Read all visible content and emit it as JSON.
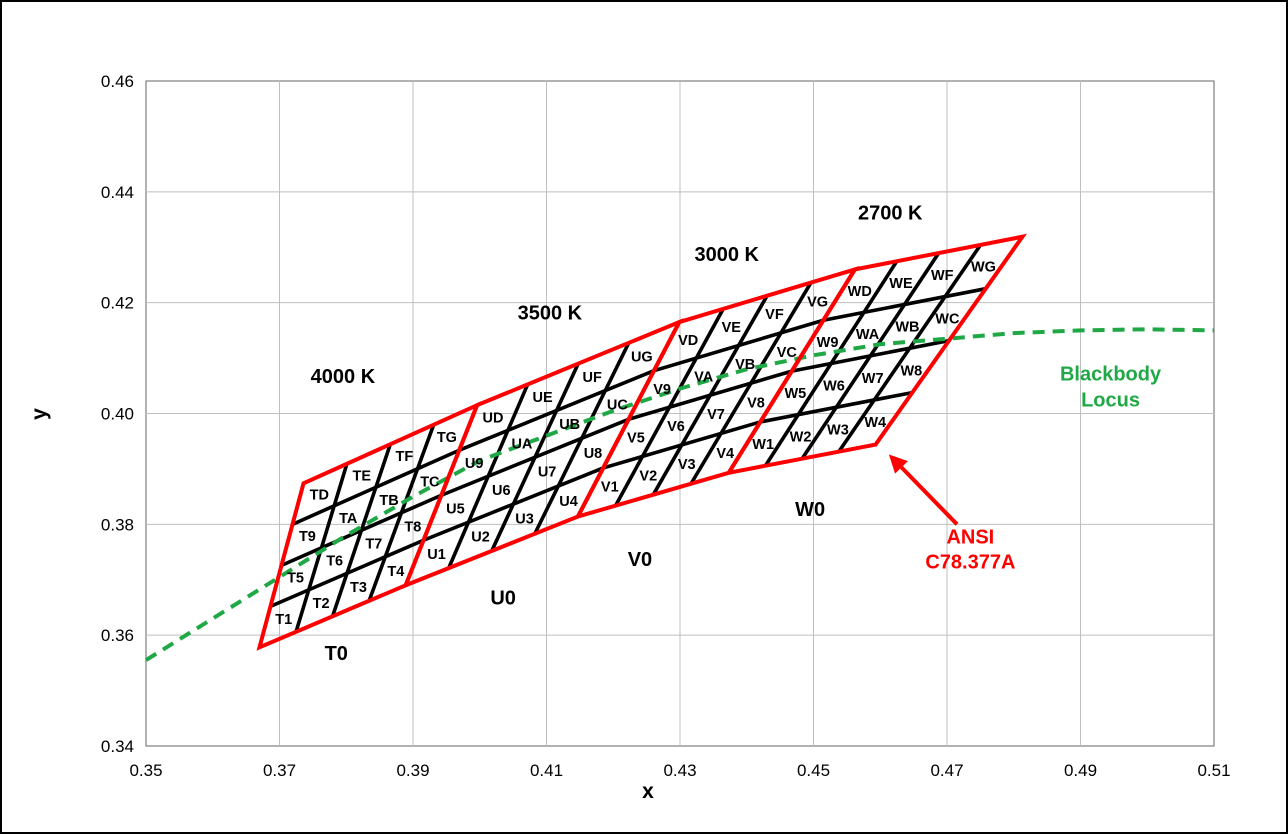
{
  "chart_data": {
    "type": "scatter",
    "title": "",
    "xlabel": "x",
    "ylabel": "y",
    "xlim": [
      0.35,
      0.51
    ],
    "ylim": [
      0.34,
      0.46
    ],
    "x_ticks": [
      0.35,
      0.37,
      0.39,
      0.41,
      0.43,
      0.45,
      0.47,
      0.49,
      0.51
    ],
    "y_ticks": [
      0.34,
      0.36,
      0.38,
      0.4,
      0.42,
      0.44,
      0.46
    ],
    "x_tick_labels": [
      "0.35",
      "0.37",
      "0.39",
      "0.41",
      "0.43",
      "0.45",
      "0.47",
      "0.49",
      "0.51"
    ],
    "y_tick_labels": [
      "0.34",
      "0.36",
      "0.38",
      "0.40",
      "0.42",
      "0.44",
      "0.46"
    ],
    "grid": true,
    "bin_groups": [
      {
        "name": "4000 K",
        "prefix": "T",
        "corners": {
          "bottom_left": [
            0.367,
            0.3578
          ],
          "top_left": [
            0.3736,
            0.3874
          ],
          "top_right": [
            0.3996,
            0.4015
          ],
          "bottom_right": [
            0.3889,
            0.369
          ]
        },
        "bins": [
          "T1",
          "T2",
          "T3",
          "T4",
          "T5",
          "T6",
          "T7",
          "T8",
          "T9",
          "TA",
          "TB",
          "TC",
          "TD",
          "TE",
          "TF",
          "TG"
        ],
        "zero_bin": "T0"
      },
      {
        "name": "3500 K",
        "prefix": "U",
        "corners": {
          "bottom_left": [
            0.3889,
            0.369
          ],
          "top_left": [
            0.3996,
            0.4015
          ],
          "top_right": [
            0.4299,
            0.4165
          ],
          "bottom_right": [
            0.4147,
            0.3814
          ]
        },
        "bins": [
          "U1",
          "U2",
          "U3",
          "U4",
          "U5",
          "U6",
          "U7",
          "U8",
          "U9",
          "UA",
          "UB",
          "UC",
          "UD",
          "UE",
          "UF",
          "UG"
        ],
        "zero_bin": "U0"
      },
      {
        "name": "3000 K",
        "prefix": "V",
        "corners": {
          "bottom_left": [
            0.4147,
            0.3814
          ],
          "top_left": [
            0.4299,
            0.4165
          ],
          "top_right": [
            0.4562,
            0.426
          ],
          "bottom_right": [
            0.4373,
            0.3893
          ]
        },
        "bins": [
          "V1",
          "V2",
          "V3",
          "V4",
          "V5",
          "V6",
          "V7",
          "V8",
          "V9",
          "VA",
          "VB",
          "VC",
          "VD",
          "VE",
          "VF",
          "VG"
        ],
        "zero_bin": "V0"
      },
      {
        "name": "2700 K",
        "prefix": "W",
        "corners": {
          "bottom_left": [
            0.4373,
            0.3893
          ],
          "top_left": [
            0.4562,
            0.426
          ],
          "top_right": [
            0.4813,
            0.4319
          ],
          "bottom_right": [
            0.4593,
            0.3944
          ]
        },
        "bins": [
          "W1",
          "W2",
          "W3",
          "W4",
          "W5",
          "W6",
          "W7",
          "W8",
          "W9",
          "WA",
          "WB",
          "WC",
          "WD",
          "WE",
          "WF",
          "WG"
        ],
        "zero_bin": "W0"
      }
    ],
    "blackbody_locus": {
      "name": "Blackbody Locus",
      "x": [
        0.35,
        0.36,
        0.37,
        0.38,
        0.39,
        0.4,
        0.41,
        0.42,
        0.43,
        0.44,
        0.45,
        0.46,
        0.47,
        0.48,
        0.49,
        0.5,
        0.51
      ],
      "y": [
        0.3555,
        0.363,
        0.3705,
        0.378,
        0.385,
        0.3915,
        0.396,
        0.4005,
        0.4045,
        0.408,
        0.4105,
        0.4125,
        0.4135,
        0.4145,
        0.415,
        0.4152,
        0.415
      ]
    },
    "annotations": [
      {
        "text": "4000 K",
        "x": 0.3795,
        "y": 0.4055
      },
      {
        "text": "3500 K",
        "x": 0.4105,
        "y": 0.417
      },
      {
        "text": "3000 K",
        "x": 0.437,
        "y": 0.4275
      },
      {
        "text": "2700 K",
        "x": 0.4615,
        "y": 0.435
      },
      {
        "text": "T0",
        "x": 0.3785,
        "y": 0.3555
      },
      {
        "text": "U0",
        "x": 0.4035,
        "y": 0.3655
      },
      {
        "text": "V0",
        "x": 0.424,
        "y": 0.3725
      },
      {
        "text": "W0",
        "x": 0.4495,
        "y": 0.3815
      }
    ],
    "legend_entries": [
      {
        "text": "Blackbody",
        "color": "#1fa845"
      },
      {
        "text": "Locus",
        "color": "#1fa845"
      }
    ],
    "callout": {
      "lines": [
        "ANSI",
        "C78.377A"
      ],
      "color": "#ff0000",
      "arrow_from": [
        0.4715,
        0.38
      ],
      "arrow_to": [
        0.4613,
        0.3926
      ]
    },
    "colors": {
      "quadrangle": "#ff0000",
      "bin_grid": "#000000",
      "locus": "#1fa845",
      "gridline": "#bfbfbf"
    }
  }
}
